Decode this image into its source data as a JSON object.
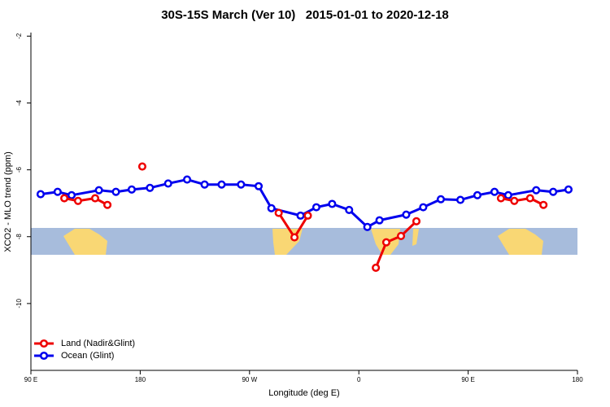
{
  "chart_data": {
    "type": "line",
    "title": "30S-15S March (Ver 10)   2015-01-01 to 2020-12-18",
    "x_label": "Longitude (deg E)",
    "y_label": "XCO2 - MLO trend (ppm)",
    "xlim": [
      90,
      540
    ],
    "xticks": [
      {
        "value": 90,
        "label": "90 E"
      },
      {
        "value": 180,
        "label": "180"
      },
      {
        "value": 270,
        "label": "90 W"
      },
      {
        "value": 360,
        "label": "0"
      },
      {
        "value": 450,
        "label": "90 E"
      },
      {
        "value": 540,
        "label": "180"
      }
    ],
    "ylim": [
      -12,
      -1.65
    ],
    "yticks": [
      -2,
      -4,
      -6,
      -8,
      -10
    ],
    "legend": "lower left",
    "series": [
      {
        "name": "Land (Nadir&Glint)",
        "color": "#ee0000",
        "x": [
          117.5,
          128.8,
          142.9,
          153,
          null,
          181.7,
          null,
          294,
          307,
          318,
          null,
          374,
          382.6,
          394.7,
          407.4,
          null,
          477,
          488,
          501,
          512
        ],
        "values": [
          -6.85,
          -6.93,
          -6.85,
          -7.05,
          null,
          -5.9,
          null,
          -7.29,
          -8.02,
          -7.37,
          null,
          -8.93,
          -8.17,
          -7.98,
          -7.54,
          null,
          -6.85,
          -6.93,
          -6.85,
          -7.05
        ]
      },
      {
        "name": "Ocean (Glint)",
        "color": "#0000ee",
        "x": [
          98,
          112,
          123.5,
          146,
          160,
          173,
          188,
          203,
          218.6,
          233,
          247,
          263,
          277.5,
          288,
          312,
          325,
          338,
          352,
          367,
          377,
          399,
          413,
          427.5,
          443.6,
          457.6,
          471.7,
          483,
          506,
          520,
          532.6
        ],
        "values": [
          -6.73,
          -6.66,
          -6.76,
          -6.61,
          -6.66,
          -6.59,
          -6.54,
          -6.41,
          -6.29,
          -6.44,
          -6.44,
          -6.44,
          -6.49,
          -7.15,
          -7.37,
          -7.12,
          -7.02,
          -7.2,
          -7.71,
          -7.51,
          -7.34,
          -7.12,
          -6.88,
          -6.9,
          -6.76,
          -6.66,
          -6.76,
          -6.61,
          -6.66,
          -6.59
        ]
      }
    ]
  }
}
